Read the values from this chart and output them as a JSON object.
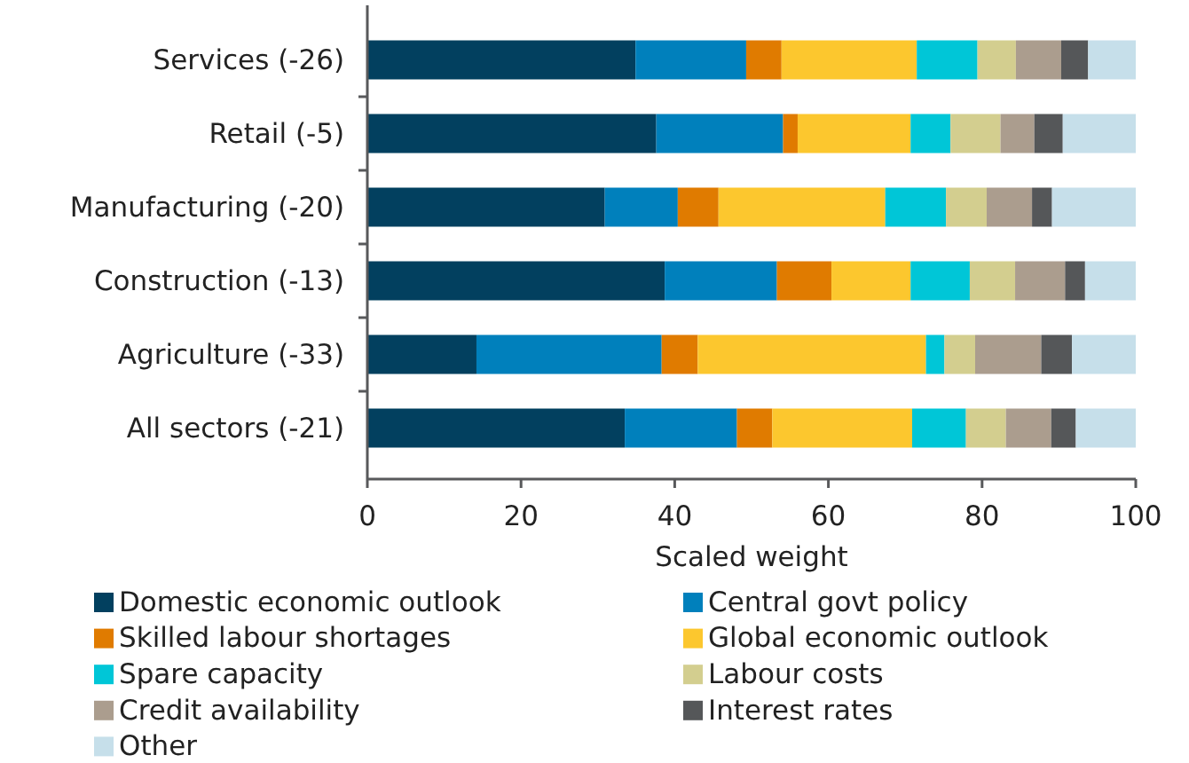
{
  "chart_data": {
    "type": "bar",
    "orientation": "horizontal",
    "stacked": true,
    "xlabel": "Scaled weight",
    "categories": [
      "Services (-26)",
      "Retail (-5)",
      "Manufacturing (-20)",
      "Construction (-13)",
      "Agriculture (-33)",
      "All sectors (-21)"
    ],
    "series": [
      {
        "name": "Domestic economic outlook",
        "color": "#02405f",
        "values": [
          34.9,
          37.6,
          30.9,
          38.7,
          14.2,
          33.5
        ]
      },
      {
        "name": "Central govt policy",
        "color": "#0080bc",
        "values": [
          14.4,
          16.5,
          9.5,
          14.6,
          24.1,
          14.6
        ]
      },
      {
        "name": "Skilled labour shortages",
        "color": "#e07b00",
        "values": [
          4.6,
          1.9,
          5.3,
          7.1,
          4.7,
          4.6
        ]
      },
      {
        "name": "Global economic outlook",
        "color": "#fcc72e",
        "values": [
          17.6,
          14.7,
          21.7,
          10.3,
          29.7,
          18.2
        ]
      },
      {
        "name": "Spare capacity",
        "color": "#00c6d7",
        "values": [
          7.9,
          5.2,
          7.9,
          7.7,
          2.4,
          7.0
        ]
      },
      {
        "name": "Labour costs",
        "color": "#d3ce8f",
        "values": [
          5.0,
          6.5,
          5.3,
          5.9,
          4.0,
          5.2
        ]
      },
      {
        "name": "Credit availability",
        "color": "#ab9d8e",
        "values": [
          5.9,
          4.4,
          5.9,
          6.5,
          8.6,
          5.9
        ]
      },
      {
        "name": "Interest rates",
        "color": "#555759",
        "values": [
          3.5,
          3.7,
          2.6,
          2.6,
          4.0,
          3.2
        ]
      },
      {
        "name": "Other",
        "color": "#c6dfea",
        "values": [
          6.2,
          9.5,
          10.9,
          6.6,
          8.3,
          7.8
        ]
      }
    ],
    "xlim": [
      0,
      100
    ],
    "xticks": [
      0,
      20,
      40,
      60,
      80,
      100
    ],
    "grid": false,
    "legend": "bottom"
  }
}
